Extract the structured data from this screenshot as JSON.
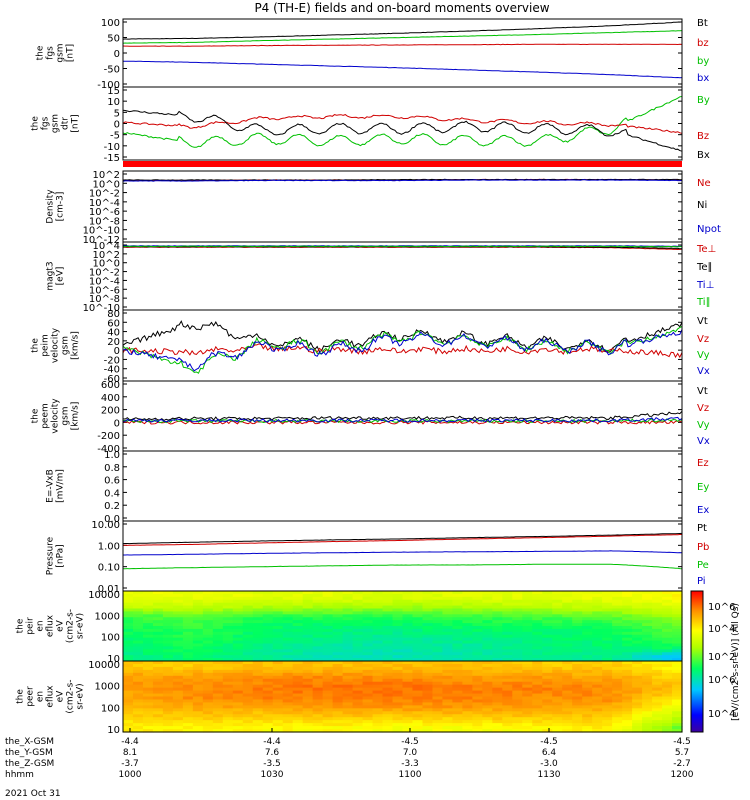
{
  "title": "P4 (TH-E) fields and on-board moments overview",
  "date_label": "2021 Oct 31",
  "colorbar_label": "[eV/(cm2-s-sr-eV)] (All Qs)",
  "colorbar_ticks": [
    "10^6",
    "10^4",
    "10^2"
  ],
  "footer": {
    "rows": [
      {
        "label": "the_X-GSM",
        "values": [
          "-4.4",
          "-4.4",
          "-4.5",
          "-4.5",
          "-4.5"
        ]
      },
      {
        "label": "the_Y-GSM",
        "values": [
          "8.1",
          "7.6",
          "7.0",
          "6.4",
          "5.7"
        ]
      },
      {
        "label": "the_Z-GSM",
        "values": [
          "-3.7",
          "-3.5",
          "-3.3",
          "-3.0",
          "-2.7"
        ]
      },
      {
        "label": "hhmm",
        "values": [
          "1000",
          "1030",
          "1100",
          "1130",
          "1200"
        ]
      }
    ]
  },
  "colors": {
    "black": "#000000",
    "red": "#d00000",
    "green": "#00c000",
    "blue": "#0000cc"
  },
  "chart_data": [
    {
      "type": "line",
      "panel": "fgs_gsm",
      "ylabel": [
        "the",
        "fgs",
        "gsm",
        "[nT]"
      ],
      "ylim": [
        -100,
        100
      ],
      "yticks": [
        "100",
        "50",
        "0",
        "-50",
        "-100"
      ],
      "x": [
        "10:00",
        "10:15",
        "10:30",
        "10:45",
        "11:00",
        "11:15",
        "11:30",
        "11:45",
        "12:00"
      ],
      "series": [
        {
          "name": "Bt",
          "color": "#000000",
          "values": [
            45,
            47,
            52,
            58,
            64,
            71,
            79,
            88,
            100
          ]
        },
        {
          "name": "bz",
          "color": "#d00000",
          "values": [
            22,
            22,
            24,
            25,
            26,
            27,
            28,
            28,
            28
          ]
        },
        {
          "name": "by",
          "color": "#00c000",
          "values": [
            32,
            34,
            40,
            45,
            50,
            55,
            60,
            66,
            72
          ]
        },
        {
          "name": "bx",
          "color": "#0000cc",
          "values": [
            -26,
            -30,
            -36,
            -42,
            -48,
            -55,
            -62,
            -70,
            -80
          ]
        }
      ]
    },
    {
      "type": "line",
      "panel": "fgs_gsm_dtr",
      "ylabel": [
        "the",
        "fgs",
        "gsm",
        "dtr",
        "[nT]"
      ],
      "ylim": [
        -18,
        15
      ],
      "yticks": [
        "15",
        "10",
        "5",
        "0",
        "-5",
        "-10",
        "-15"
      ],
      "x": [
        "10:00",
        "10:15",
        "10:30",
        "10:45",
        "11:00",
        "11:15",
        "11:30",
        "11:45",
        "12:00"
      ],
      "series": [
        {
          "name": "By",
          "color": "#00c000",
          "values": [
            -6,
            -11,
            -9,
            -10,
            -9,
            -10,
            -10,
            -4,
            12
          ]
        },
        {
          "name": "Bz",
          "color": "#d00000",
          "values": [
            -1,
            -3,
            1,
            2,
            2,
            0,
            -1,
            -2,
            -6
          ]
        },
        {
          "name": "Bx",
          "color": "#000000",
          "values": [
            5,
            2,
            -5,
            -4,
            -4,
            -3,
            -4,
            -5,
            -15
          ]
        }
      ]
    },
    {
      "type": "line",
      "panel": "density",
      "ylabel": [
        "Density",
        "[cm-3]"
      ],
      "yticks": [
        "10^2",
        "10^0",
        "10^-2",
        "10^-4",
        "10^-6",
        "10^-8",
        "10^-10",
        "10^-12"
      ],
      "series": [
        {
          "name": "Ne",
          "color": "#d00000",
          "log10_values": [
            0.6,
            0.6,
            0.7,
            0.7,
            0.7,
            0.8,
            0.8,
            0.8,
            0.7
          ]
        },
        {
          "name": "Ni",
          "color": "#000000",
          "log10_values": [
            0.7,
            0.7,
            0.7,
            0.7,
            0.8,
            0.8,
            0.8,
            0.8,
            0.8
          ]
        },
        {
          "name": "Npot",
          "color": "#0000cc",
          "log10_values": [
            0.5,
            0.5,
            0.6,
            0.6,
            0.6,
            0.7,
            0.7,
            0.7,
            0.6
          ]
        }
      ]
    },
    {
      "type": "line",
      "panel": "temperature",
      "ylabel": [
        "magt3",
        "[eV]"
      ],
      "yticks": [
        "10^4",
        "10^2",
        "10^0",
        "10^-2",
        "10^-4",
        "10^-6",
        "10^-8",
        "10^-10"
      ],
      "series": [
        {
          "name": "Te⊥",
          "color": "#d00000",
          "log10_values": [
            3.5,
            3.5,
            3.5,
            3.5,
            3.5,
            3.5,
            3.5,
            3.4,
            3.0
          ]
        },
        {
          "name": "Te∥",
          "color": "#000000",
          "log10_values": [
            3.6,
            3.6,
            3.6,
            3.6,
            3.6,
            3.6,
            3.6,
            3.5,
            3.2
          ]
        },
        {
          "name": "Ti⊥",
          "color": "#0000cc",
          "log10_values": [
            3.8,
            3.8,
            3.8,
            3.8,
            3.8,
            3.8,
            3.8,
            3.8,
            3.7
          ]
        },
        {
          "name": "Ti∥",
          "color": "#00c000",
          "log10_values": [
            3.7,
            3.7,
            3.7,
            3.7,
            3.7,
            3.7,
            3.7,
            3.7,
            3.6
          ]
        }
      ]
    },
    {
      "type": "line",
      "panel": "peim_velocity",
      "ylabel": [
        "the",
        "peim",
        "velocity",
        "gsm",
        "[km/s]"
      ],
      "ylim": [
        -60,
        80
      ],
      "yticks": [
        "80",
        "60",
        "40",
        "20",
        "0",
        "-20",
        "-40",
        "-60"
      ],
      "series": [
        {
          "name": "Vt",
          "color": "#000000",
          "values": [
            10,
            60,
            20,
            10,
            35,
            25,
            15,
            10,
            55
          ]
        },
        {
          "name": "Vz",
          "color": "#d00000",
          "values": [
            0,
            -5,
            5,
            0,
            0,
            0,
            0,
            0,
            -10
          ]
        },
        {
          "name": "Vy",
          "color": "#00c000",
          "values": [
            5,
            -40,
            15,
            5,
            30,
            20,
            10,
            5,
            45
          ]
        },
        {
          "name": "Vx",
          "color": "#0000cc",
          "values": [
            0,
            -30,
            10,
            0,
            25,
            20,
            10,
            5,
            40
          ]
        }
      ]
    },
    {
      "type": "line",
      "panel": "peem_velocity",
      "ylabel": [
        "the",
        "peem",
        "velocity",
        "gsm",
        "[km/s]"
      ],
      "ylim": [
        -400,
        600
      ],
      "yticks": [
        "600",
        "400",
        "200",
        "0",
        "-200",
        "-400"
      ],
      "series": [
        {
          "name": "Vt",
          "color": "#000000",
          "values": [
            50,
            60,
            60,
            70,
            70,
            70,
            70,
            70,
            150
          ]
        },
        {
          "name": "Vz",
          "color": "#d00000",
          "values": [
            0,
            0,
            0,
            0,
            0,
            0,
            0,
            0,
            0
          ]
        },
        {
          "name": "Vy",
          "color": "#00c000",
          "values": [
            20,
            20,
            20,
            20,
            20,
            20,
            20,
            20,
            40
          ]
        },
        {
          "name": "Vx",
          "color": "#0000cc",
          "values": [
            30,
            30,
            30,
            30,
            30,
            30,
            30,
            30,
            60
          ]
        }
      ]
    },
    {
      "type": "line",
      "panel": "efield",
      "ylabel": [
        "E=-VxB",
        "[mV/m]"
      ],
      "ylim": [
        0,
        1
      ],
      "yticks": [
        "1.0",
        "0.8",
        "0.6",
        "0.4",
        "0.2",
        "0.0"
      ],
      "series": [
        {
          "name": "Ez",
          "color": "#d00000",
          "values": []
        },
        {
          "name": "Ey",
          "color": "#00c000",
          "values": []
        },
        {
          "name": "Ex",
          "color": "#0000cc",
          "values": []
        }
      ]
    },
    {
      "type": "line",
      "panel": "pressure",
      "ylabel": [
        "Pressure",
        "[nPa]"
      ],
      "yscale": "log",
      "yticks": [
        "10.00",
        "1.00",
        "0.10",
        "0.01"
      ],
      "series": [
        {
          "name": "Pt",
          "color": "#000000",
          "values": [
            1.2,
            1.4,
            1.6,
            1.8,
            2.0,
            2.3,
            2.6,
            3.0,
            3.6
          ]
        },
        {
          "name": "Pb",
          "color": "#d00000",
          "values": [
            1.0,
            1.1,
            1.3,
            1.5,
            1.7,
            2.0,
            2.3,
            2.7,
            3.2
          ]
        },
        {
          "name": "Pe",
          "color": "#00c000",
          "values": [
            0.08,
            0.09,
            0.1,
            0.11,
            0.12,
            0.12,
            0.13,
            0.13,
            0.08
          ]
        },
        {
          "name": "Pi",
          "color": "#0000cc",
          "values": [
            0.35,
            0.38,
            0.42,
            0.45,
            0.48,
            0.5,
            0.52,
            0.55,
            0.45
          ]
        }
      ]
    },
    {
      "type": "heatmap",
      "panel": "peir_en_eflux",
      "ylabel": [
        "the",
        "peir",
        "en",
        "eflux",
        "eV",
        "(cm2-s-",
        "sr-eV)"
      ],
      "yticks": [
        "10000",
        "1000",
        "100",
        "10"
      ],
      "yrange_log10": [
        0.8,
        4.3
      ],
      "energy_log10": [
        1.0,
        1.5,
        2.0,
        2.5,
        3.0,
        3.5,
        4.0
      ],
      "flux_log10_by_time": [
        [
          4.2,
          4.3,
          4.4,
          4.5,
          4.7,
          5.6,
          6.0
        ],
        [
          4.4,
          4.5,
          4.6,
          4.7,
          4.9,
          5.6,
          6.0
        ],
        [
          4.1,
          4.2,
          4.3,
          4.4,
          4.6,
          5.4,
          5.9
        ],
        [
          3.9,
          4.0,
          4.2,
          4.3,
          4.6,
          5.4,
          5.9
        ],
        [
          3.9,
          4.0,
          4.1,
          4.3,
          4.6,
          5.3,
          5.8
        ],
        [
          4.0,
          4.1,
          4.2,
          4.4,
          4.7,
          5.4,
          5.9
        ],
        [
          4.1,
          4.2,
          4.3,
          4.4,
          4.8,
          5.5,
          5.9
        ],
        [
          4.2,
          4.3,
          4.4,
          4.5,
          4.9,
          5.6,
          6.0
        ],
        [
          3.4,
          4.5,
          4.8,
          5.0,
          5.3,
          5.8,
          6.2
        ]
      ]
    },
    {
      "type": "heatmap",
      "panel": "peer_en_eflux",
      "ylabel": [
        "the",
        "peer",
        "en",
        "eflux",
        "eV",
        "(cm2-s-",
        "sr-eV)"
      ],
      "yticks": [
        "10000",
        "1000",
        "100",
        "10"
      ],
      "yrange_log10": [
        0.8,
        4.3
      ],
      "energy_log10": [
        1.0,
        1.5,
        2.0,
        2.5,
        3.0,
        3.5,
        4.0
      ],
      "flux_log10_by_time": [
        [
          6.3,
          6.5,
          6.7,
          6.9,
          7.0,
          7.0,
          6.6
        ],
        [
          6.2,
          6.6,
          6.9,
          7.1,
          7.1,
          7.0,
          6.6
        ],
        [
          6.2,
          6.5,
          6.9,
          7.2,
          7.2,
          7.1,
          6.7
        ],
        [
          6.2,
          6.6,
          7.0,
          7.2,
          7.3,
          7.1,
          6.7
        ],
        [
          6.1,
          6.5,
          7.0,
          7.2,
          7.3,
          7.1,
          6.7
        ],
        [
          6.1,
          6.6,
          7.0,
          7.2,
          7.2,
          7.0,
          6.7
        ],
        [
          6.2,
          6.6,
          6.9,
          7.1,
          7.2,
          7.0,
          6.6
        ],
        [
          6.3,
          6.6,
          6.9,
          7.1,
          7.1,
          6.9,
          6.6
        ],
        [
          5.0,
          5.5,
          6.0,
          6.4,
          6.7,
          6.5,
          6.2
        ]
      ]
    }
  ]
}
